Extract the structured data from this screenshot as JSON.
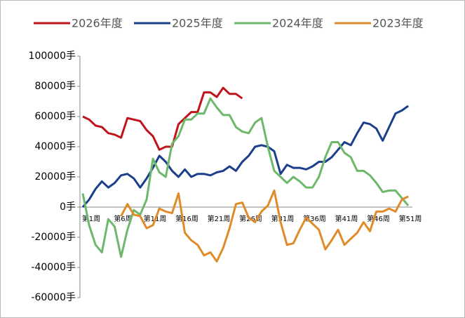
{
  "chart_data": {
    "type": "line",
    "categories": [
      "第1周",
      null,
      null,
      null,
      null,
      "第6周",
      null,
      null,
      null,
      null,
      "第11周",
      null,
      null,
      null,
      null,
      "第16周",
      null,
      null,
      null,
      null,
      "第21周",
      null,
      null,
      null,
      null,
      "第26周",
      null,
      null,
      null,
      null,
      "第31周",
      null,
      null,
      null,
      null,
      "第36周",
      null,
      null,
      null,
      null,
      "第41周",
      null,
      null,
      null,
      null,
      "第46周",
      null,
      null,
      null,
      null,
      "第51周",
      null
    ],
    "ylim": [
      -60000,
      100000
    ],
    "yticks": [
      {
        "value": -60000,
        "label": "-60000手"
      },
      {
        "value": -40000,
        "label": "-40000手"
      },
      {
        "value": -20000,
        "label": "-20000手"
      },
      {
        "value": 0,
        "label": "0手"
      },
      {
        "value": 20000,
        "label": "20000手"
      },
      {
        "value": 40000,
        "label": "40000手"
      },
      {
        "value": 60000,
        "label": "60000手"
      },
      {
        "value": 80000,
        "label": "80000手"
      },
      {
        "value": 100000,
        "label": "100000手"
      }
    ],
    "series": [
      {
        "name": "2026年度",
        "color": "#c0141c",
        "values": [
          60000,
          58000,
          54000,
          53000,
          49000,
          48000,
          46000,
          59000,
          58000,
          57000,
          51000,
          47000,
          38000,
          40000,
          40000,
          55000,
          59000,
          63000,
          63000,
          76000,
          76000,
          73000,
          79000,
          75000,
          75000,
          72000,
          null,
          null,
          null,
          null,
          null,
          null,
          null,
          null,
          null,
          null,
          null,
          null,
          null,
          null,
          null,
          null,
          null,
          null,
          null,
          null,
          null,
          null,
          null,
          null,
          null,
          null
        ]
      },
      {
        "name": "2025年度",
        "color": "#1c3f8c",
        "values": [
          0,
          5000,
          12000,
          17000,
          13000,
          16000,
          21000,
          22000,
          19000,
          13000,
          19000,
          26000,
          34000,
          30000,
          24000,
          20000,
          25000,
          20000,
          22000,
          22000,
          21000,
          23000,
          24000,
          27000,
          24000,
          30000,
          34000,
          40000,
          41000,
          40000,
          37000,
          22000,
          28000,
          26000,
          26000,
          25000,
          27000,
          30000,
          30000,
          33000,
          38000,
          43000,
          41000,
          49000,
          56000,
          55000,
          52000,
          44000,
          53000,
          62000,
          64000,
          67000
        ]
      },
      {
        "name": "2024年度",
        "color": "#6db86a",
        "values": [
          9000,
          -12000,
          -25000,
          -30000,
          -8000,
          -13000,
          -33000,
          -15000,
          -2000,
          -5000,
          5000,
          32000,
          23000,
          20000,
          42000,
          47000,
          58000,
          58000,
          62000,
          62000,
          72000,
          66000,
          61000,
          61000,
          53000,
          50000,
          49000,
          56000,
          59000,
          40000,
          24000,
          20000,
          16000,
          20000,
          17000,
          13000,
          13000,
          20000,
          33000,
          43000,
          43000,
          36000,
          33000,
          24000,
          24000,
          21000,
          16000,
          10000,
          11000,
          11000,
          6000,
          1000
        ]
      },
      {
        "name": "2023年度",
        "color": "#e08b2a",
        "values": [
          null,
          null,
          null,
          null,
          null,
          null,
          -6000,
          2000,
          -5000,
          -6000,
          -14000,
          -12000,
          -1000,
          -3000,
          -4000,
          9000,
          -17000,
          -22000,
          -25000,
          -32000,
          -30000,
          -36000,
          -27000,
          -14000,
          2000,
          3000,
          -7000,
          -10000,
          -3000,
          1000,
          11000,
          -10000,
          -25000,
          -24000,
          -15000,
          -7000,
          -11000,
          -15000,
          -28000,
          -22000,
          -15000,
          -25000,
          -21000,
          -17000,
          -10000,
          -16000,
          -3000,
          -3000,
          -1000,
          -3000,
          5000,
          7000
        ]
      }
    ]
  }
}
